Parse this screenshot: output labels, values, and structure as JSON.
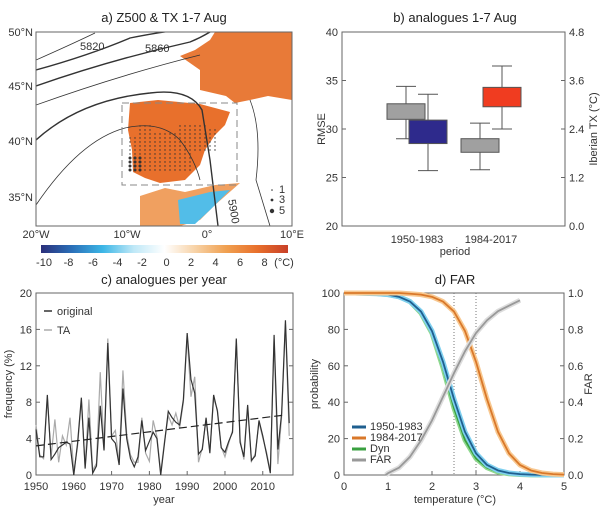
{
  "panel_a": {
    "title": "a) Z500 & TX 1-7 Aug",
    "lat_labels": [
      "50°N",
      "45°N",
      "40°N",
      "35°N"
    ],
    "lon_labels": [
      "20°W",
      "10°W",
      "0°",
      "10°E"
    ],
    "contour_labels": [
      "5820",
      "5860",
      "5900"
    ],
    "stipple_legend": [
      "1",
      "3",
      "5"
    ],
    "colorbar": {
      "ticks": [
        "-10",
        "-8",
        "-6",
        "-4",
        "-2",
        "0",
        "2",
        "4",
        "6",
        "8"
      ],
      "unit": "(°C)",
      "colors": [
        "#2b2f7a",
        "#2a6fb8",
        "#3cb6e6",
        "#bfe8f7",
        "#ffffff",
        "#f7d2a6",
        "#f0a050",
        "#e8702c",
        "#c84028"
      ]
    }
  },
  "chart_data": [
    {
      "type": "box",
      "title": "b) analogues 1-7 Aug",
      "xlabel": "period",
      "ylabel": "RMSE",
      "ylabel_right": "Iberian TX (°C)",
      "ylim": [
        20,
        40
      ],
      "yticks": [
        "20",
        "25",
        "30",
        "35",
        "40"
      ],
      "ylim_right": [
        0,
        4.8
      ],
      "yticks_right": [
        "0.0",
        "1.2",
        "2.4",
        "3.6",
        "4.8"
      ],
      "categories": [
        "1950-1983",
        "1984-2017"
      ],
      "boxes": [
        {
          "category": "1950-1983",
          "axis": "left",
          "q1": 31.0,
          "q3": 32.6,
          "min": 29.0,
          "max": 34.4,
          "color": "#a0a0a0"
        },
        {
          "category": "1950-1983",
          "axis": "right",
          "q1": 2.04,
          "q3": 2.62,
          "min": 1.37,
          "max": 3.26,
          "color": "#2e2a8c"
        },
        {
          "category": "1984-2017",
          "axis": "left",
          "q1": 27.6,
          "q3": 29.0,
          "min": 25.8,
          "max": 30.6,
          "color": "#a0a0a0"
        },
        {
          "category": "1984-2017",
          "axis": "right",
          "q1": 2.95,
          "q3": 3.43,
          "min": 2.4,
          "max": 3.96,
          "color": "#f03c20"
        }
      ]
    },
    {
      "type": "line",
      "title": "c) analogues per year",
      "xlabel": "year",
      "ylabel": "frequency (%)",
      "xlim": [
        1950,
        2018
      ],
      "ylim": [
        0,
        20
      ],
      "xticks": [
        "1950",
        "1960",
        "1970",
        "1980",
        "1990",
        "2000",
        "2010"
      ],
      "yticks": [
        "0",
        "4",
        "8",
        "12",
        "16",
        "20"
      ],
      "legend": "top-left",
      "x_start": 1950,
      "series": [
        {
          "name": "original",
          "color": "#333333",
          "values": [
            5,
            2,
            2,
            8.8,
            1.7,
            2.3,
            3,
            3.3,
            3.6,
            3.4,
            0,
            3.5,
            8.5,
            0.7,
            6.3,
            0.2,
            1,
            7.6,
            2.7,
            14.5,
            4,
            3.5,
            1.1,
            9.5,
            4,
            1.8,
            0.9,
            2,
            6,
            2.7,
            3.7,
            4.7,
            4,
            0,
            3.5,
            7,
            6.3,
            5.8,
            5.5,
            8.3,
            15.6,
            10.5,
            9,
            2.3,
            2.8,
            6.3,
            2.4,
            8.8,
            7,
            3,
            2.5,
            3.7,
            4.7,
            15,
            3.6,
            2,
            7.7,
            1.6,
            2.1,
            6,
            4.3,
            2.3,
            0.2,
            15.4,
            2.8,
            6.8,
            17,
            5.7
          ]
        },
        {
          "name": "TA",
          "color": "#aaaaaa",
          "values": [
            5.5,
            2.2,
            1.8,
            8.5,
            2,
            6.1,
            1.4,
            4.3,
            3.3,
            6.3,
            0.3,
            3.2,
            8.2,
            1,
            8.3,
            0.5,
            1.3,
            11.3,
            2.9,
            15,
            4.3,
            4.9,
            1.3,
            11.5,
            4.5,
            2.2,
            1.4,
            1.4,
            6.3,
            2.4,
            1.5,
            6,
            4.2,
            0.3,
            3.7,
            6.5,
            5.5,
            6.8,
            5.2,
            8,
            15.2,
            8.6,
            10.8,
            1.4,
            3,
            6.1,
            2.6,
            8.4,
            7.2,
            3.1,
            2,
            3.5,
            4.9,
            14.8,
            3.9,
            1.7,
            7.5,
            1.5,
            2.3,
            5.8,
            4.1,
            2.5,
            0.4,
            14.9,
            1.2,
            6.5,
            16.6,
            4.3
          ]
        },
        {
          "name": "trend",
          "style": "dashed",
          "color": "#222222",
          "x": [
            1950,
            2016
          ],
          "values": [
            3.2,
            6.6
          ]
        }
      ]
    },
    {
      "type": "line",
      "title": "d) FAR",
      "xlabel": "temperature (°C)",
      "ylabel": "probability",
      "ylabel_right": "FAR",
      "xlim": [
        0,
        5
      ],
      "ylim": [
        0,
        100
      ],
      "ylim_right": [
        0,
        1
      ],
      "xticks": [
        "0",
        "1",
        "2",
        "3",
        "4",
        "5"
      ],
      "yticks": [
        "0",
        "20",
        "40",
        "60",
        "80",
        "100"
      ],
      "yticks_right": [
        "0.0",
        "0.2",
        "0.4",
        "0.6",
        "0.8",
        "1.0"
      ],
      "legend": "bottom-left",
      "vlines": [
        2.5,
        3
      ],
      "x": [
        0,
        0.25,
        0.5,
        0.75,
        1,
        1.25,
        1.5,
        1.75,
        2,
        2.25,
        2.5,
        2.75,
        3,
        3.25,
        3.5,
        3.75,
        4,
        4.25,
        4.5,
        4.75,
        5
      ],
      "series": [
        {
          "name": "1950-1983",
          "color": "#1f5f8f",
          "band": "#7fd0f0",
          "values": [
            100,
            100,
            99.8,
            99.6,
            99.1,
            97.9,
            95.3,
            89.8,
            79.1,
            62.2,
            41.7,
            23.7,
            11.9,
            5.5,
            2.5,
            1.1,
            0.5,
            0.2,
            0.1,
            0,
            0
          ]
        },
        {
          "name": "1984-2017",
          "color": "#d9782a",
          "band": "#f8c890",
          "values": [
            100,
            100,
            100,
            100,
            100,
            100,
            99.6,
            99.1,
            97.9,
            95.3,
            89.8,
            79.1,
            62.2,
            41.7,
            23.7,
            11.9,
            5.5,
            2.5,
            1.1,
            0.5,
            0.2
          ]
        },
        {
          "name": "Dyn",
          "color": "#3aa040",
          "band": "#8ed88e",
          "values": [
            100,
            100,
            99.9,
            99.7,
            99.2,
            98,
            95.3,
            89,
            77.9,
            58.9,
            36.7,
            19.2,
            9.1,
            4,
            1.6,
            0.7,
            0.3,
            0.1,
            0,
            0,
            0
          ]
        },
        {
          "name": "FAR",
          "color": "#999999",
          "band": "#dddddd",
          "axis": "right",
          "x": [
            0.95,
            1,
            1.25,
            1.5,
            1.75,
            2,
            2.25,
            2.5,
            2.75,
            3,
            3.25,
            3.5,
            3.75,
            4
          ],
          "values": [
            0,
            0.01,
            0.04,
            0.1,
            0.19,
            0.3,
            0.43,
            0.56,
            0.68,
            0.78,
            0.85,
            0.9,
            0.93,
            0.96
          ]
        }
      ]
    }
  ]
}
